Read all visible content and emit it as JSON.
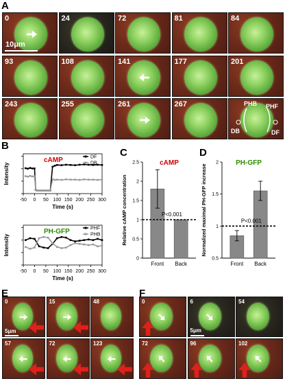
{
  "panels": {
    "A": "A",
    "B": "B",
    "C": "C",
    "D": "D",
    "E": "E",
    "F": "F"
  },
  "panelA": {
    "scale_label": "10μm",
    "tiles": [
      "0",
      "24",
      "72",
      "81",
      "84",
      "93",
      "108",
      "141",
      "177",
      "201",
      "243",
      "255",
      "261",
      "267",
      ""
    ],
    "annotations": {
      "phb": "PHB",
      "phf": "PHF",
      "db": "DB",
      "df": "DF"
    }
  },
  "panelE": {
    "scale_label": "5μm",
    "tiles": [
      "0",
      "15",
      "48",
      "57",
      "72",
      "123"
    ]
  },
  "panelF": {
    "scale_label": "5μm",
    "tiles": [
      "0",
      "6",
      "54",
      "72",
      "96",
      "102"
    ]
  },
  "colors": {
    "series_black": "#000000",
    "series_gray": "#999999",
    "accent_red": "#cc0000",
    "accent_green": "#2e8b00",
    "bar_gray": "#888888"
  },
  "chart_data": [
    {
      "type": "line",
      "title": "cAMP",
      "xlabel": "Time (s)",
      "ylabel": "Intensity",
      "xlim": [
        -50,
        300
      ],
      "xticks": [
        "-50",
        "0",
        "50",
        "100",
        "150",
        "200",
        "250",
        "300"
      ],
      "series": [
        {
          "name": "DF",
          "x": [
            -40,
            -30,
            -20,
            -10,
            0,
            5,
            10,
            20,
            30,
            40,
            50,
            60,
            70,
            80,
            90,
            100,
            120,
            140,
            160,
            180,
            200,
            220,
            240,
            260,
            280,
            300
          ],
          "y": [
            102,
            100,
            103,
            101,
            101,
            15,
            12,
            12,
            12,
            12,
            12,
            12,
            12,
            108,
            112,
            115,
            114,
            116,
            115,
            114,
            116,
            117,
            116,
            115,
            116,
            115
          ]
        },
        {
          "name": "DB",
          "x": [
            -40,
            -30,
            -20,
            -10,
            0,
            5,
            10,
            20,
            30,
            40,
            50,
            60,
            70,
            80,
            90,
            100,
            120,
            140,
            160,
            180,
            200,
            220,
            240,
            260,
            280,
            300
          ],
          "y": [
            70,
            68,
            71,
            69,
            70,
            15,
            12,
            12,
            12,
            12,
            12,
            12,
            12,
            58,
            55,
            56,
            55,
            57,
            56,
            56,
            55,
            57,
            56,
            56,
            55,
            56
          ]
        }
      ]
    },
    {
      "type": "line",
      "title": "PH-GFP",
      "xlabel": "Time (s)",
      "ylabel": "Intensity",
      "xlim": [
        -50,
        300
      ],
      "xticks": [
        "-50",
        "0",
        "50",
        "100",
        "150",
        "200",
        "250",
        "300"
      ],
      "series": [
        {
          "name": "PHF",
          "x": [
            -40,
            -20,
            0,
            20,
            40,
            60,
            80,
            100,
            120,
            140,
            160,
            180,
            200,
            220,
            240,
            260,
            280,
            300
          ],
          "y": [
            200,
            215,
            210,
            150,
            140,
            135,
            170,
            215,
            225,
            220,
            200,
            190,
            195,
            200,
            205,
            200,
            210,
            200
          ]
        },
        {
          "name": "PHB",
          "x": [
            -40,
            -20,
            0,
            20,
            40,
            60,
            80,
            100,
            120,
            140,
            160,
            180,
            200,
            220,
            240,
            260,
            280,
            300
          ],
          "y": [
            145,
            130,
            140,
            215,
            225,
            220,
            175,
            145,
            135,
            140,
            160,
            175,
            170,
            165,
            160,
            165,
            150,
            155
          ]
        }
      ]
    },
    {
      "type": "bar",
      "title": "cAMP",
      "categories": [
        "Front",
        "Back"
      ],
      "values": [
        1.8,
        1.0
      ],
      "errors": [
        0.5,
        0.0
      ],
      "ylabel": "Relative cAMP concentration",
      "ylim": [
        0,
        2.5
      ],
      "yticks": [
        "0",
        "0.5",
        "1",
        "1.5",
        "2",
        "2.5"
      ],
      "annotation": "P<0.001",
      "reference_line": 1
    },
    {
      "type": "bar",
      "title": "PH-GFP",
      "categories": [
        "Front",
        "Back"
      ],
      "values": [
        0.85,
        1.55
      ],
      "errors": [
        0.08,
        0.15
      ],
      "ylabel": "Normalized maximal PH-GFP increase",
      "ylim": [
        0.5,
        2
      ],
      "yticks": [
        "0.5",
        "1",
        "1.5",
        "2"
      ],
      "annotation": "P<0.001",
      "reference_line": 1
    }
  ]
}
